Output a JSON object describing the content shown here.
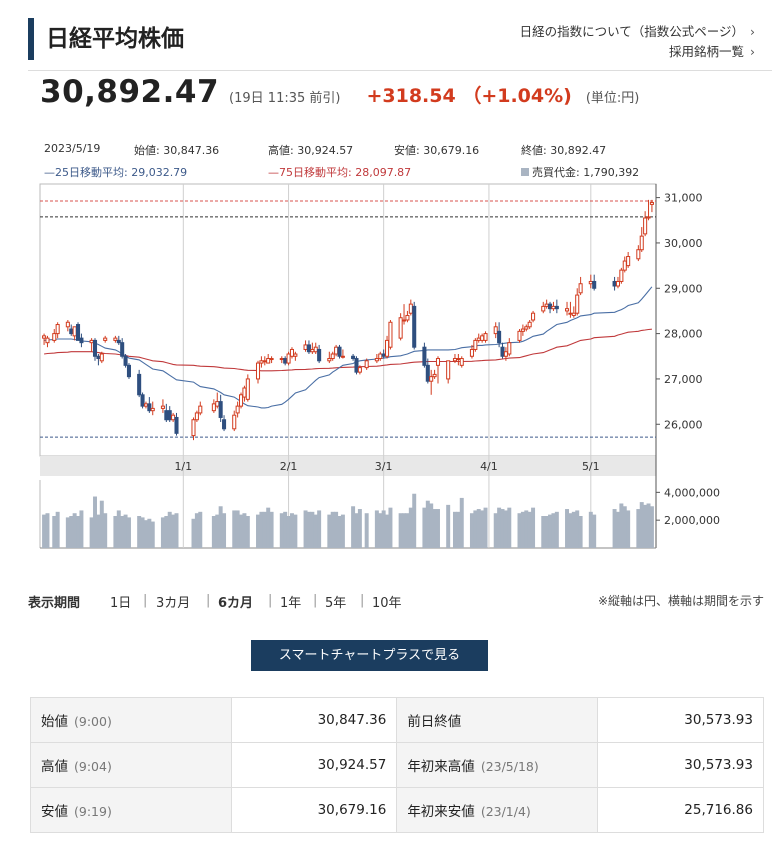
{
  "header": {
    "title": "日経平均株価",
    "links": [
      "日経の指数について（指数公式ページ）",
      "採用銘柄一覧"
    ]
  },
  "quote": {
    "price": "30,892.47",
    "time": "(19日 11:35 前引)",
    "change": "+318.54 （+1.04%)",
    "unit": "(単位:円)"
  },
  "stats_row": {
    "date": "2023/5/19",
    "open": "始値: 30,847.36",
    "high": "高値: 30,924.57",
    "low": "安値: 30,679.16",
    "close": "終値: 30,892.47"
  },
  "legend_row": {
    "ma25": "—25日移動平均: 29,032.79",
    "ma75": "—75日移動平均: 28,097.87",
    "volume": "売買代金: 1,790,392"
  },
  "chart_data": {
    "type": "candlestick",
    "dates": [
      "2022-11-21",
      "2022-11-22",
      "2022-11-24",
      "2022-11-25",
      "2022-11-28",
      "2022-11-29",
      "2022-11-30",
      "2022-12-01",
      "2022-12-02",
      "2022-12-05",
      "2022-12-06",
      "2022-12-07",
      "2022-12-08",
      "2022-12-09",
      "2022-12-12",
      "2022-12-13",
      "2022-12-14",
      "2022-12-15",
      "2022-12-16",
      "2022-12-19",
      "2022-12-20",
      "2022-12-21",
      "2022-12-22",
      "2022-12-23",
      "2022-12-26",
      "2022-12-27",
      "2022-12-28",
      "2022-12-29",
      "2022-12-30",
      "2023-01-04",
      "2023-01-05",
      "2023-01-06",
      "2023-01-10",
      "2023-01-11",
      "2023-01-12",
      "2023-01-13",
      "2023-01-16",
      "2023-01-17",
      "2023-01-18",
      "2023-01-19",
      "2023-01-20",
      "2023-01-23",
      "2023-01-24",
      "2023-01-25",
      "2023-01-26",
      "2023-01-27",
      "2023-01-30",
      "2023-01-31",
      "2023-02-01",
      "2023-02-02",
      "2023-02-03",
      "2023-02-06",
      "2023-02-07",
      "2023-02-08",
      "2023-02-09",
      "2023-02-10",
      "2023-02-13",
      "2023-02-14",
      "2023-02-15",
      "2023-02-16",
      "2023-02-17",
      "2023-02-20",
      "2023-02-21",
      "2023-02-22",
      "2023-02-24",
      "2023-02-27",
      "2023-02-28",
      "2023-03-01",
      "2023-03-02",
      "2023-03-03",
      "2023-03-06",
      "2023-03-07",
      "2023-03-08",
      "2023-03-09",
      "2023-03-10",
      "2023-03-13",
      "2023-03-14",
      "2023-03-15",
      "2023-03-16",
      "2023-03-17",
      "2023-03-20",
      "2023-03-22",
      "2023-03-23",
      "2023-03-24",
      "2023-03-27",
      "2023-03-28",
      "2023-03-29",
      "2023-03-30",
      "2023-03-31",
      "2023-04-03",
      "2023-04-04",
      "2023-04-05",
      "2023-04-06",
      "2023-04-07",
      "2023-04-10",
      "2023-04-11",
      "2023-04-12",
      "2023-04-13",
      "2023-04-14",
      "2023-04-17",
      "2023-04-18",
      "2023-04-19",
      "2023-04-20",
      "2023-04-21",
      "2023-04-24",
      "2023-04-25",
      "2023-04-26",
      "2023-04-27",
      "2023-04-28",
      "2023-05-01",
      "2023-05-02",
      "2023-05-08",
      "2023-05-09",
      "2023-05-10",
      "2023-05-11",
      "2023-05-12",
      "2023-05-15",
      "2023-05-16",
      "2023-05-17",
      "2023-05-18",
      "2023-05-19"
    ],
    "open": [
      27900,
      27800,
      27850,
      28000,
      28150,
      28100,
      27950,
      28200,
      27900,
      27800,
      27850,
      27500,
      27400,
      27850,
      27850,
      27850,
      27800,
      27500,
      27300,
      27100,
      26650,
      26400,
      26450,
      26300,
      26350,
      26300,
      26300,
      26100,
      26150,
      25750,
      26100,
      26250,
      26300,
      26400,
      26500,
      26100,
      25900,
      26250,
      26400,
      26600,
      26550,
      27000,
      27350,
      27400,
      27350,
      27450,
      27450,
      27450,
      27350,
      27500,
      27500,
      27650,
      27750,
      27600,
      27600,
      27650,
      27400,
      27450,
      27550,
      27700,
      27500,
      27500,
      27450,
      27150,
      27250,
      27400,
      27450,
      27550,
      27500,
      27700,
      27900,
      28300,
      28300,
      28450,
      28600,
      27700,
      27300,
      26950,
      27050,
      27300,
      27000,
      27400,
      27450,
      27300,
      27500,
      27650,
      27850,
      27850,
      27850,
      28000,
      28050,
      27700,
      27500,
      27550,
      27850,
      28050,
      28100,
      28150,
      28300,
      28500,
      28600,
      28650,
      28550,
      28600,
      28500,
      28450,
      28400,
      28450,
      28900,
      29100,
      29150,
      29150,
      29050,
      29150,
      29400,
      29500,
      29650,
      29850,
      30200,
      30550,
      30850
    ],
    "high": [
      28000,
      27950,
      28100,
      28250,
      28300,
      28200,
      28150,
      28250,
      28000,
      27900,
      27900,
      27550,
      27600,
      27950,
      27950,
      27950,
      27900,
      27550,
      27350,
      27200,
      26700,
      26500,
      26600,
      26500,
      26550,
      26450,
      26400,
      26250,
      26250,
      26150,
      26300,
      26500,
      26550,
      26700,
      26650,
      26200,
      26300,
      26500,
      26700,
      26850,
      27100,
      27400,
      27500,
      27500,
      27550,
      27500,
      27500,
      27500,
      27600,
      27700,
      27600,
      27850,
      27850,
      27800,
      27800,
      27750,
      27600,
      27600,
      27750,
      27750,
      27650,
      27550,
      27500,
      27300,
      27450,
      27550,
      27600,
      27650,
      27950,
      28300,
      28450,
      28650,
      28500,
      28750,
      28700,
      27800,
      27450,
      27200,
      27200,
      27500,
      27400,
      27550,
      27550,
      27500,
      27750,
      27900,
      28000,
      28000,
      28050,
      28250,
      28250,
      27800,
      27700,
      27900,
      28100,
      28200,
      28200,
      28300,
      28500,
      28700,
      28750,
      28700,
      28700,
      28750,
      28700,
      28700,
      28600,
      29000,
      29250,
      29300,
      29300,
      29250,
      29250,
      29450,
      29700,
      29800,
      29950,
      30350,
      30700,
      30950,
      30950
    ],
    "low": [
      27750,
      27700,
      27800,
      27900,
      28050,
      27950,
      27850,
      27850,
      27700,
      27600,
      27400,
      27300,
      27350,
      27800,
      27800,
      27750,
      27450,
      27250,
      27000,
      26600,
      26350,
      26350,
      26250,
      26200,
      26250,
      26050,
      26050,
      26050,
      25750,
      25650,
      26050,
      26200,
      26250,
      26350,
      26050,
      25850,
      25850,
      26150,
      26350,
      26500,
      26500,
      26900,
      27250,
      27300,
      27350,
      27350,
      27350,
      27300,
      27300,
      27450,
      27400,
      27600,
      27550,
      27550,
      27550,
      27350,
      27350,
      27400,
      27500,
      27450,
      27450,
      27400,
      27100,
      27100,
      27200,
      27350,
      27400,
      27450,
      27450,
      27650,
      27850,
      28200,
      28250,
      28400,
      27650,
      27250,
      26900,
      26650,
      27000,
      26900,
      26900,
      27350,
      27300,
      27250,
      27450,
      27600,
      27800,
      27800,
      27800,
      27900,
      27700,
      27450,
      27400,
      27500,
      27800,
      27950,
      28050,
      28100,
      28250,
      28450,
      28550,
      28450,
      28500,
      28450,
      28400,
      28350,
      28350,
      28400,
      28850,
      29000,
      28950,
      28950,
      29000,
      29100,
      29350,
      29450,
      29600,
      29800,
      30150,
      30500,
      30680
    ],
    "close": [
      27950,
      27900,
      28000,
      28200,
      28250,
      28000,
      28150,
      27850,
      27800,
      27850,
      27500,
      27450,
      27550,
      27900,
      27900,
      27800,
      27500,
      27300,
      27050,
      26650,
      26400,
      26450,
      26300,
      26350,
      26400,
      26100,
      26100,
      26200,
      25800,
      26100,
      26250,
      26400,
      26450,
      26500,
      26150,
      25900,
      26200,
      26400,
      26650,
      26800,
      27000,
      27350,
      27400,
      27400,
      27450,
      27450,
      27450,
      27350,
      27550,
      27650,
      27550,
      27750,
      27600,
      27650,
      27700,
      27400,
      27450,
      27550,
      27700,
      27500,
      27500,
      27450,
      27150,
      27250,
      27400,
      27450,
      27550,
      27500,
      27850,
      28250,
      28350,
      28300,
      28400,
      28650,
      27700,
      27300,
      26950,
      27050,
      27100,
      27450,
      27400,
      27450,
      27450,
      27450,
      27650,
      27850,
      27900,
      27950,
      28000,
      28150,
      27800,
      27500,
      27600,
      27800,
      28050,
      28100,
      28150,
      28250,
      28450,
      28600,
      28650,
      28550,
      28600,
      28550,
      28550,
      28450,
      28450,
      28850,
      29100,
      29150,
      29000,
      29050,
      29150,
      29400,
      29600,
      29700,
      29850,
      30150,
      30550,
      30573.93,
      30892.47
    ],
    "ma25": [
      27850,
      27860,
      27870,
      27880,
      27880,
      27880,
      27870,
      27860,
      27840,
      27820,
      27790,
      27760,
      27720,
      27680,
      27640,
      27600,
      27550,
      27510,
      27460,
      27420,
      27370,
      27320,
      27270,
      27220,
      27180,
      27130,
      27080,
      27030,
      26980,
      26930,
      26880,
      26830,
      26780,
      26740,
      26700,
      26650,
      26600,
      26550,
      26500,
      26450,
      26410,
      26380,
      26360,
      26360,
      26370,
      26400,
      26440,
      26490,
      26550,
      26620,
      26690,
      26760,
      26830,
      26900,
      26970,
      27030,
      27090,
      27150,
      27200,
      27250,
      27300,
      27340,
      27380,
      27400,
      27420,
      27440,
      27450,
      27460,
      27470,
      27490,
      27510,
      27530,
      27550,
      27580,
      27610,
      27630,
      27640,
      27640,
      27640,
      27640,
      27640,
      27650,
      27670,
      27690,
      27710,
      27730,
      27740,
      27740,
      27750,
      27760,
      27770,
      27780,
      27790,
      27800,
      27810,
      27830,
      27860,
      27900,
      27940,
      27990,
      28050,
      28100,
      28150,
      28200,
      28250,
      28290,
      28320,
      28350,
      28390,
      28420,
      28450,
      28470,
      28500,
      28530,
      28570,
      28620,
      28680,
      28760,
      28850,
      28940,
      29032.79
    ],
    "ma75": [
      27550,
      27560,
      27570,
      27580,
      27590,
      27600,
      27600,
      27600,
      27600,
      27600,
      27590,
      27580,
      27570,
      27560,
      27550,
      27540,
      27530,
      27520,
      27500,
      27480,
      27460,
      27440,
      27420,
      27400,
      27380,
      27360,
      27340,
      27320,
      27310,
      27300,
      27290,
      27280,
      27270,
      27260,
      27250,
      27240,
      27230,
      27220,
      27210,
      27200,
      27190,
      27185,
      27180,
      27180,
      27180,
      27180,
      27185,
      27190,
      27195,
      27200,
      27205,
      27210,
      27215,
      27220,
      27225,
      27230,
      27235,
      27240,
      27245,
      27250,
      27255,
      27260,
      27265,
      27270,
      27275,
      27280,
      27290,
      27300,
      27310,
      27320,
      27330,
      27340,
      27350,
      27360,
      27370,
      27380,
      27385,
      27385,
      27385,
      27385,
      27385,
      27385,
      27385,
      27385,
      27390,
      27395,
      27400,
      27405,
      27410,
      27420,
      27430,
      27440,
      27450,
      27460,
      27470,
      27490,
      27510,
      27530,
      27550,
      27580,
      27610,
      27640,
      27670,
      27700,
      27730,
      27760,
      27790,
      27820,
      27850,
      27880,
      27910,
      27940,
      27970,
      27990,
      28010,
      28030,
      28050,
      28070,
      28080,
      28090,
      28097.87
    ],
    "volume": [
      2400000,
      2500000,
      2300000,
      2600000,
      2200000,
      2300000,
      2500000,
      2300000,
      2700000,
      2200000,
      3700000,
      2400000,
      3400000,
      2500000,
      2300000,
      2700000,
      2300000,
      2400000,
      2200000,
      2300000,
      2200000,
      2000000,
      2100000,
      1900000,
      2200000,
      2300000,
      2600000,
      2400000,
      2500000,
      2100000,
      2500000,
      2600000,
      2300000,
      2400000,
      3000000,
      2500000,
      2700000,
      2700000,
      2400000,
      2500000,
      2300000,
      2400000,
      2600000,
      2600000,
      2900000,
      2600000,
      2500000,
      2600000,
      2300000,
      2500000,
      2400000,
      2700000,
      2600000,
      2600000,
      2400000,
      2700000,
      2400000,
      2600000,
      2600000,
      2300000,
      2400000,
      3000000,
      2500000,
      2800000,
      2500000,
      2700000,
      2500000,
      2700000,
      2400000,
      2900000,
      2500000,
      2500000,
      2500000,
      2900000,
      3900000,
      2900000,
      3400000,
      3200000,
      2800000,
      2800000,
      3100000,
      2600000,
      2600000,
      3600000,
      2500000,
      2700000,
      2800000,
      2700000,
      2900000,
      2500000,
      2900000,
      2800000,
      2700000,
      2900000,
      2500000,
      2600000,
      2700000,
      2600000,
      2900000,
      2300000,
      2300000,
      2400000,
      2500000,
      2600000,
      2800000,
      2500000,
      2600000,
      2700000,
      2300000,
      2600000,
      2400000,
      2800000,
      2600000,
      3200000,
      3000000,
      2700000,
      2800000,
      3300000,
      3100000,
      3200000,
      3000000
    ],
    "y_ticks": [
      "31,000",
      "30,000",
      "29,000",
      "28,000",
      "27,000",
      "26,000"
    ],
    "ylim": [
      25300,
      31300
    ],
    "x_ticks": [
      {
        "date": "2023-01-01",
        "label": "1/1"
      },
      {
        "date": "2023-02-01",
        "label": "2/1"
      },
      {
        "date": "2023-03-01",
        "label": "3/1"
      },
      {
        "date": "2023-04-01",
        "label": "4/1"
      },
      {
        "date": "2023-05-01",
        "label": "5/1"
      }
    ],
    "volume_ticks": [
      "4,000,000",
      "2,000,000"
    ],
    "volume_ylim": [
      0,
      4600000
    ],
    "ref_lines": [
      {
        "value": 30924.57,
        "color": "#d9534f",
        "style": "dashed"
      },
      {
        "value": 30573.93,
        "color": "#333333",
        "style": "dashed"
      },
      {
        "value": 25716.86,
        "color": "#3d5a8a",
        "style": "dashed"
      }
    ],
    "colors": {
      "up": "#d23b1e",
      "down": "#2f4f7f",
      "ma25": "#4a6fa5",
      "ma75": "#c0393b",
      "volume": "#a9b4c2",
      "axis_band": "#e8e8e8"
    },
    "grid": false
  },
  "period": {
    "label": "表示期間",
    "items": [
      "1日",
      "3カ月",
      "6カ月",
      "1年",
      "5年",
      "10年"
    ],
    "active": "6カ月",
    "note": "※縦軸は円、横軸は期間を示す"
  },
  "button": {
    "label": "スマートチャートプラスで見る"
  },
  "table": {
    "rows": [
      {
        "k1": "始値",
        "s1": "(9:00)",
        "v1": "30,847.36",
        "k2": "前日終値",
        "s2": "",
        "v2": "30,573.93"
      },
      {
        "k1": "高値",
        "s1": "(9:04)",
        "v1": "30,924.57",
        "k2": "年初来高値",
        "s2": "(23/5/18)",
        "v2": "30,573.93"
      },
      {
        "k1": "安値",
        "s1": "(9:19)",
        "v1": "30,679.16",
        "k2": "年初来安値",
        "s2": "(23/1/4)",
        "v2": "25,716.86"
      }
    ]
  }
}
